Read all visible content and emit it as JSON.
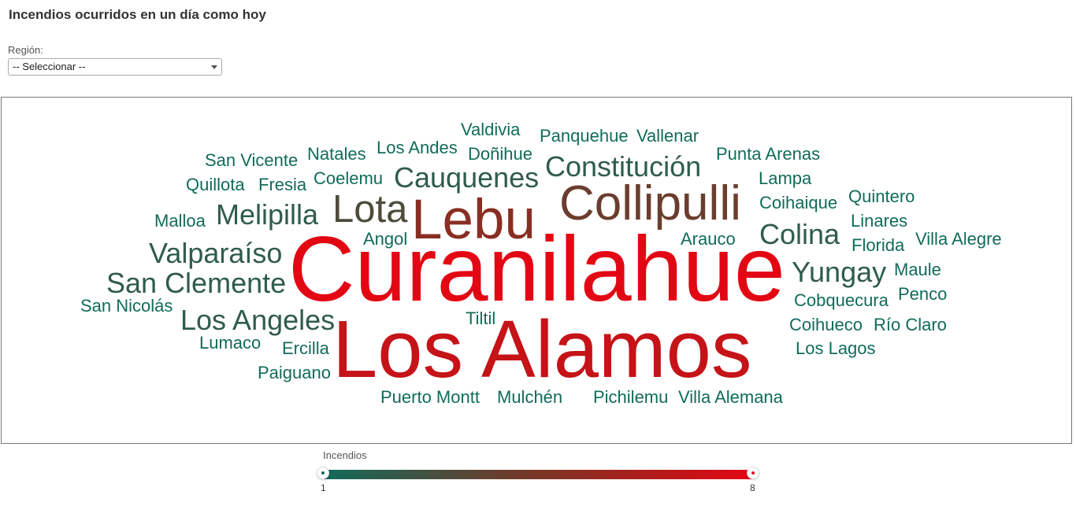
{
  "page": {
    "title": "Incendios ocurridos en un día como hoy"
  },
  "filter": {
    "label": "Región:",
    "selected": "-- Seleccionar --"
  },
  "legend": {
    "title": "Incendios",
    "min": "1",
    "max": "8",
    "colors": [
      "#116b5a",
      "#7a3525",
      "#e30613"
    ]
  },
  "cloud": {
    "words": [
      {
        "text": "Valdivia",
        "count": 1
      },
      {
        "text": "Panquehue",
        "count": 1
      },
      {
        "text": "Vallenar",
        "count": 1
      },
      {
        "text": "Natales",
        "count": 1
      },
      {
        "text": "Los Andes",
        "count": 1
      },
      {
        "text": "Doñihue",
        "count": 1
      },
      {
        "text": "Punta Arenas",
        "count": 1
      },
      {
        "text": "San Vicente",
        "count": 1
      },
      {
        "text": "Constitución",
        "count": 2
      },
      {
        "text": "Quillota",
        "count": 1
      },
      {
        "text": "Fresia",
        "count": 1
      },
      {
        "text": "Coelemu",
        "count": 1
      },
      {
        "text": "Cauquenes",
        "count": 2
      },
      {
        "text": "Lampa",
        "count": 1
      },
      {
        "text": "Quintero",
        "count": 1
      },
      {
        "text": "Collipulli",
        "count": 4
      },
      {
        "text": "Coihaique",
        "count": 1
      },
      {
        "text": "Lota",
        "count": 3
      },
      {
        "text": "Lebu",
        "count": 5
      },
      {
        "text": "Malloa",
        "count": 1
      },
      {
        "text": "Melipilla",
        "count": 2
      },
      {
        "text": "Linares",
        "count": 1
      },
      {
        "text": "Colina",
        "count": 2
      },
      {
        "text": "Angol",
        "count": 1
      },
      {
        "text": "Arauco",
        "count": 1
      },
      {
        "text": "Florida",
        "count": 1
      },
      {
        "text": "Villa Alegre",
        "count": 1
      },
      {
        "text": "Valparaíso",
        "count": 2
      },
      {
        "text": "Curanilahue",
        "count": 8
      },
      {
        "text": "Yungay",
        "count": 2
      },
      {
        "text": "Maule",
        "count": 1
      },
      {
        "text": "San Clemente",
        "count": 2
      },
      {
        "text": "Penco",
        "count": 1
      },
      {
        "text": "Cobquecura",
        "count": 1
      },
      {
        "text": "San Nicolás",
        "count": 1
      },
      {
        "text": "Los Angeles",
        "count": 2
      },
      {
        "text": "Tiltil",
        "count": 1
      },
      {
        "text": "Coihueco",
        "count": 1
      },
      {
        "text": "Río Claro",
        "count": 1
      },
      {
        "text": "Lumaco",
        "count": 1
      },
      {
        "text": "Ercilla",
        "count": 1
      },
      {
        "text": "Los Alamos",
        "count": 7
      },
      {
        "text": "Los Lagos",
        "count": 1
      },
      {
        "text": "Paiguano",
        "count": 1
      },
      {
        "text": "Puerto Montt",
        "count": 1
      },
      {
        "text": "Mulchén",
        "count": 1
      },
      {
        "text": "Pichilemu",
        "count": 1
      },
      {
        "text": "Villa Alemana",
        "count": 1
      }
    ]
  }
}
